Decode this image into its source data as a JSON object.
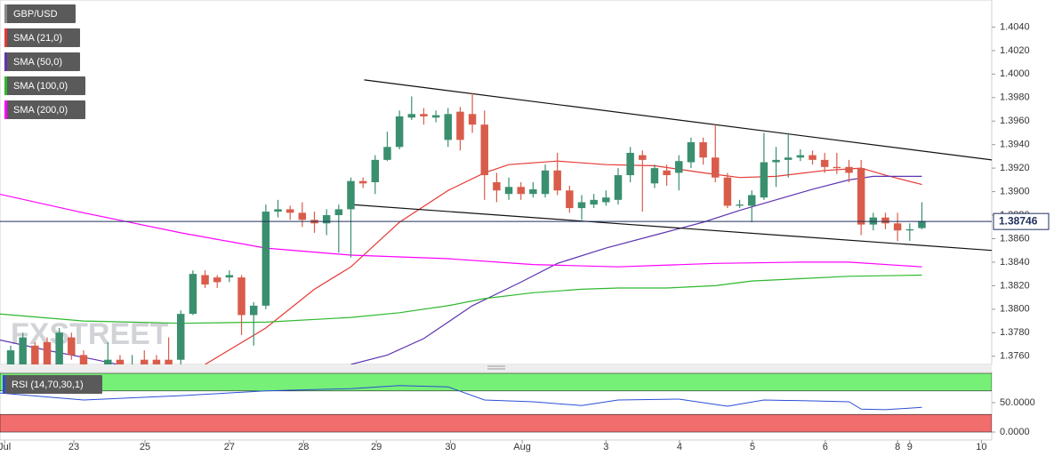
{
  "chart_data": [
    {
      "type": "candlestick",
      "watermark": "FXSTREET",
      "xlim": [
        -0.88,
        80.75
      ],
      "ylim": [
        1.3753,
        1.4063
      ],
      "xticks": [
        {
          "value": -0.5,
          "label": "Jul"
        },
        {
          "value": 5.2,
          "label": "23"
        },
        {
          "value": 11.05,
          "label": "25"
        },
        {
          "value": 18,
          "label": "27"
        },
        {
          "value": 24.1,
          "label": "28"
        },
        {
          "value": 30.1,
          "label": "29"
        },
        {
          "value": 36.2,
          "label": "30"
        },
        {
          "value": 42.1,
          "label": "Aug"
        },
        {
          "value": 49,
          "label": "3"
        },
        {
          "value": 55.05,
          "label": "4"
        },
        {
          "value": 61.05,
          "label": "5"
        },
        {
          "value": 67.05,
          "label": "6"
        },
        {
          "value": 73,
          "label": "8"
        },
        {
          "value": 74,
          "label": "9"
        },
        {
          "value": 79.9,
          "label": "10"
        }
      ],
      "yticks": [
        {
          "value": 1.376,
          "label": "1.3760"
        },
        {
          "value": 1.378,
          "label": "1.3780"
        },
        {
          "value": 1.38,
          "label": "1.3800"
        },
        {
          "value": 1.382,
          "label": "1.3820"
        },
        {
          "value": 1.384,
          "label": "1.3840"
        },
        {
          "value": 1.386,
          "label": "1.3860"
        },
        {
          "value": 1.388,
          "label": "1.3880"
        },
        {
          "value": 1.39,
          "label": "1.3900"
        },
        {
          "value": 1.392,
          "label": "1.3920"
        },
        {
          "value": 1.394,
          "label": "1.3940"
        },
        {
          "value": 1.396,
          "label": "1.3960"
        },
        {
          "value": 1.398,
          "label": "1.3980"
        },
        {
          "value": 1.4,
          "label": "1.4000"
        },
        {
          "value": 1.402,
          "label": "1.4020"
        },
        {
          "value": 1.404,
          "label": "1.4040"
        }
      ],
      "current_price": 1.38746,
      "current_price_color": "#1f2f5c",
      "candles": {
        "name": "GBP/USD",
        "up_color": "#3a8f6f",
        "down_color": "#d95c4b",
        "x": [
          0,
          1,
          2,
          3,
          4,
          5,
          6,
          7,
          8,
          9,
          10,
          11,
          12,
          13,
          14,
          15,
          16,
          17,
          18,
          19,
          20,
          21,
          22,
          23,
          24,
          25,
          26,
          27,
          28,
          29,
          30,
          31,
          32,
          33,
          34,
          35,
          36,
          37,
          38,
          39,
          40,
          41,
          42,
          43,
          44,
          45,
          46,
          47,
          48,
          49,
          50,
          51,
          52,
          53,
          54,
          55,
          56,
          57,
          58,
          59,
          60,
          61,
          62,
          63,
          64,
          65,
          66,
          67,
          68,
          69,
          70,
          71,
          72,
          73,
          74,
          75
        ],
        "open": [
          1.3738,
          1.3753,
          1.3769,
          1.3772,
          1.375,
          1.3776,
          1.3761,
          1.3746,
          1.3738,
          1.3757,
          1.3742,
          1.3757,
          1.3757,
          1.3757,
          1.3757,
          1.3796,
          1.3829,
          1.3827,
          1.3827,
          1.3827,
          1.3795,
          1.3803,
          1.3883,
          1.3885,
          1.3882,
          1.3876,
          1.3873,
          1.388,
          1.3885,
          1.3909,
          1.3908,
          1.3927,
          1.3938,
          1.3963,
          1.3966,
          1.3963,
          1.3944,
          1.3968,
          1.3966,
          1.3957,
          1.3908,
          1.3898,
          1.3904,
          1.3898,
          1.3898,
          1.3918,
          1.3901,
          1.3886,
          1.3889,
          1.3891,
          1.3893,
          1.3914,
          1.3931,
          1.3907,
          1.3918,
          1.3916,
          1.3925,
          1.3942,
          1.3929,
          1.3912,
          1.3888,
          1.3888,
          1.3895,
          1.3925,
          1.3927,
          1.3929,
          1.3931,
          1.3927,
          1.3921,
          1.3921,
          1.392,
          1.3872,
          1.3878,
          1.3873,
          1.3867,
          1.3869
        ],
        "high": [
          1.3769,
          1.378,
          1.3772,
          1.3776,
          1.3784,
          1.378,
          1.3765,
          1.375,
          1.3772,
          1.3761,
          1.3761,
          1.3765,
          1.3761,
          1.3776,
          1.3799,
          1.3833,
          1.3833,
          1.3829,
          1.3833,
          1.3829,
          1.3806,
          1.3889,
          1.3893,
          1.3888,
          1.3891,
          1.3883,
          1.3885,
          1.3889,
          1.3912,
          1.3912,
          1.3931,
          1.3951,
          1.3969,
          1.3981,
          1.3971,
          1.3969,
          1.3971,
          1.3972,
          1.3984,
          1.3969,
          1.3916,
          1.3912,
          1.3908,
          1.3908,
          1.3923,
          1.3933,
          1.3905,
          1.3897,
          1.3898,
          1.3901,
          1.392,
          1.3938,
          1.3935,
          1.3923,
          1.3923,
          1.3931,
          1.3946,
          1.3946,
          1.3957,
          1.3916,
          1.3893,
          1.3901,
          1.395,
          1.3938,
          1.395,
          1.3936,
          1.3935,
          1.3933,
          1.3933,
          1.3927,
          1.3927,
          1.3882,
          1.3882,
          1.3882,
          1.3873,
          1.3891
        ],
        "low": [
          1.3734,
          1.3752,
          1.3742,
          1.3746,
          1.3747,
          1.3757,
          1.3742,
          1.3734,
          1.3734,
          1.3738,
          1.374,
          1.3747,
          1.375,
          1.375,
          1.3753,
          1.3795,
          1.3818,
          1.3818,
          1.3823,
          1.3778,
          1.3769,
          1.38,
          1.3878,
          1.3876,
          1.387,
          1.3865,
          1.3863,
          1.3848,
          1.3844,
          1.3903,
          1.3898,
          1.3926,
          1.3936,
          1.3961,
          1.3957,
          1.3959,
          1.3938,
          1.3935,
          1.395,
          1.3893,
          1.3891,
          1.3893,
          1.3893,
          1.3895,
          1.3895,
          1.3897,
          1.3882,
          1.3876,
          1.3886,
          1.3888,
          1.3889,
          1.3908,
          1.3883,
          1.3903,
          1.3905,
          1.3901,
          1.392,
          1.3923,
          1.3908,
          1.3886,
          1.3886,
          1.3874,
          1.3893,
          1.3904,
          1.3912,
          1.3926,
          1.3923,
          1.3916,
          1.3915,
          1.3908,
          1.3863,
          1.3867,
          1.3868,
          1.3858,
          1.3858,
          1.3868
        ],
        "close": [
          1.3765,
          1.3776,
          1.3746,
          1.375,
          1.378,
          1.3761,
          1.3746,
          1.3738,
          1.3757,
          1.3742,
          1.3753,
          1.3752,
          1.3752,
          1.3752,
          1.3796,
          1.383,
          1.3821,
          1.3823,
          1.3829,
          1.3795,
          1.3803,
          1.3883,
          1.3885,
          1.3882,
          1.3876,
          1.3873,
          1.388,
          1.3885,
          1.3909,
          1.3907,
          1.3927,
          1.3938,
          1.3964,
          1.3966,
          1.3964,
          1.3965,
          1.3966,
          1.3944,
          1.3957,
          1.3914,
          1.3901,
          1.3904,
          1.3898,
          1.3902,
          1.3918,
          1.3901,
          1.3886,
          1.3891,
          1.3893,
          1.3895,
          1.3914,
          1.3933,
          1.3927,
          1.392,
          1.3914,
          1.3926,
          1.3942,
          1.3929,
          1.3912,
          1.3888,
          1.3889,
          1.3897,
          1.3925,
          1.3927,
          1.3929,
          1.3931,
          1.3927,
          1.3921,
          1.392,
          1.3916,
          1.3872,
          1.3878,
          1.3873,
          1.3867,
          1.3868,
          1.3875
        ]
      },
      "series": [
        {
          "name": "SMA (21,0)",
          "color": "#e53935",
          "x": [
            16,
            21,
            25,
            28,
            32,
            36,
            39,
            41,
            45,
            49,
            53,
            57,
            60,
            63,
            67,
            70,
            72,
            75
          ],
          "values": [
            1.3753,
            1.3784,
            1.3817,
            1.3836,
            1.3874,
            1.3901,
            1.3916,
            1.3923,
            1.3926,
            1.3923,
            1.3922,
            1.3916,
            1.3912,
            1.3913,
            1.3918,
            1.392,
            1.3914,
            1.3906
          ]
        },
        {
          "name": "SMA (50,0)",
          "color": "#5e35b1",
          "x": [
            -1,
            3,
            7,
            12,
            15,
            28,
            31,
            34,
            38,
            42,
            45,
            49,
            53,
            57,
            60,
            63,
            66,
            69,
            71,
            75
          ],
          "values": [
            1.3774,
            1.3765,
            1.3757,
            1.3746,
            null,
            1.3753,
            1.3761,
            1.3775,
            1.3803,
            1.3823,
            1.3839,
            1.3852,
            1.3863,
            1.3874,
            1.3884,
            1.3893,
            1.3902,
            1.391,
            1.3913,
            1.3913
          ]
        },
        {
          "name": "SMA (100,0)",
          "color": "#2eb82e",
          "x": [
            -1,
            6,
            14,
            21,
            28,
            32,
            36,
            39,
            43,
            47,
            50,
            54,
            58,
            61,
            65,
            69,
            75
          ],
          "values": [
            1.3796,
            1.379,
            1.3788,
            1.3789,
            1.3793,
            1.3797,
            1.3803,
            1.3809,
            1.3814,
            1.3817,
            1.3818,
            1.3818,
            1.382,
            1.3824,
            1.3826,
            1.3828,
            1.3829
          ]
        },
        {
          "name": "SMA (200,0)",
          "color": "#ff00ff",
          "x": [
            -1,
            6,
            14,
            21,
            28,
            36,
            43,
            50,
            58,
            65,
            69,
            75
          ],
          "values": [
            1.3898,
            1.3882,
            1.3865,
            1.3852,
            1.3846,
            1.3843,
            1.3838,
            1.3836,
            1.3839,
            1.384,
            1.384,
            1.3836
          ]
        }
      ],
      "trendlines": [
        {
          "color": "#111111",
          "x": [
            29.1,
            80.75
          ],
          "values": [
            1.3995,
            1.3927
          ]
        },
        {
          "color": "#111111",
          "x": [
            28,
            80.75
          ],
          "values": [
            1.3889,
            1.385
          ]
        }
      ]
    },
    {
      "type": "line",
      "xlim": [
        -0.88,
        80.75
      ],
      "ylim": [
        -13.6,
        103
      ],
      "yticks": [
        {
          "value": 50,
          "label": "50.0000"
        },
        {
          "value": 0,
          "label": "0.0000"
        }
      ],
      "bands": [
        {
          "from": 70,
          "to": 100,
          "color": "#77f077"
        },
        {
          "from": 0,
          "to": 30,
          "color": "#f26d6d"
        }
      ],
      "series": [
        {
          "name": "RSI (14,70,30,1)",
          "color": "#2a4fd6",
          "x": [
            -1,
            6,
            14,
            21,
            28,
            32,
            36,
            39,
            43,
            47,
            50,
            55,
            59,
            62,
            66,
            69,
            70,
            72,
            75
          ],
          "values": [
            66.7,
            54.5,
            62,
            70,
            74,
            79,
            77,
            54.5,
            51.5,
            45,
            54.5,
            56,
            44,
            54.5,
            53,
            51.5,
            39,
            38,
            42
          ]
        }
      ]
    }
  ]
}
